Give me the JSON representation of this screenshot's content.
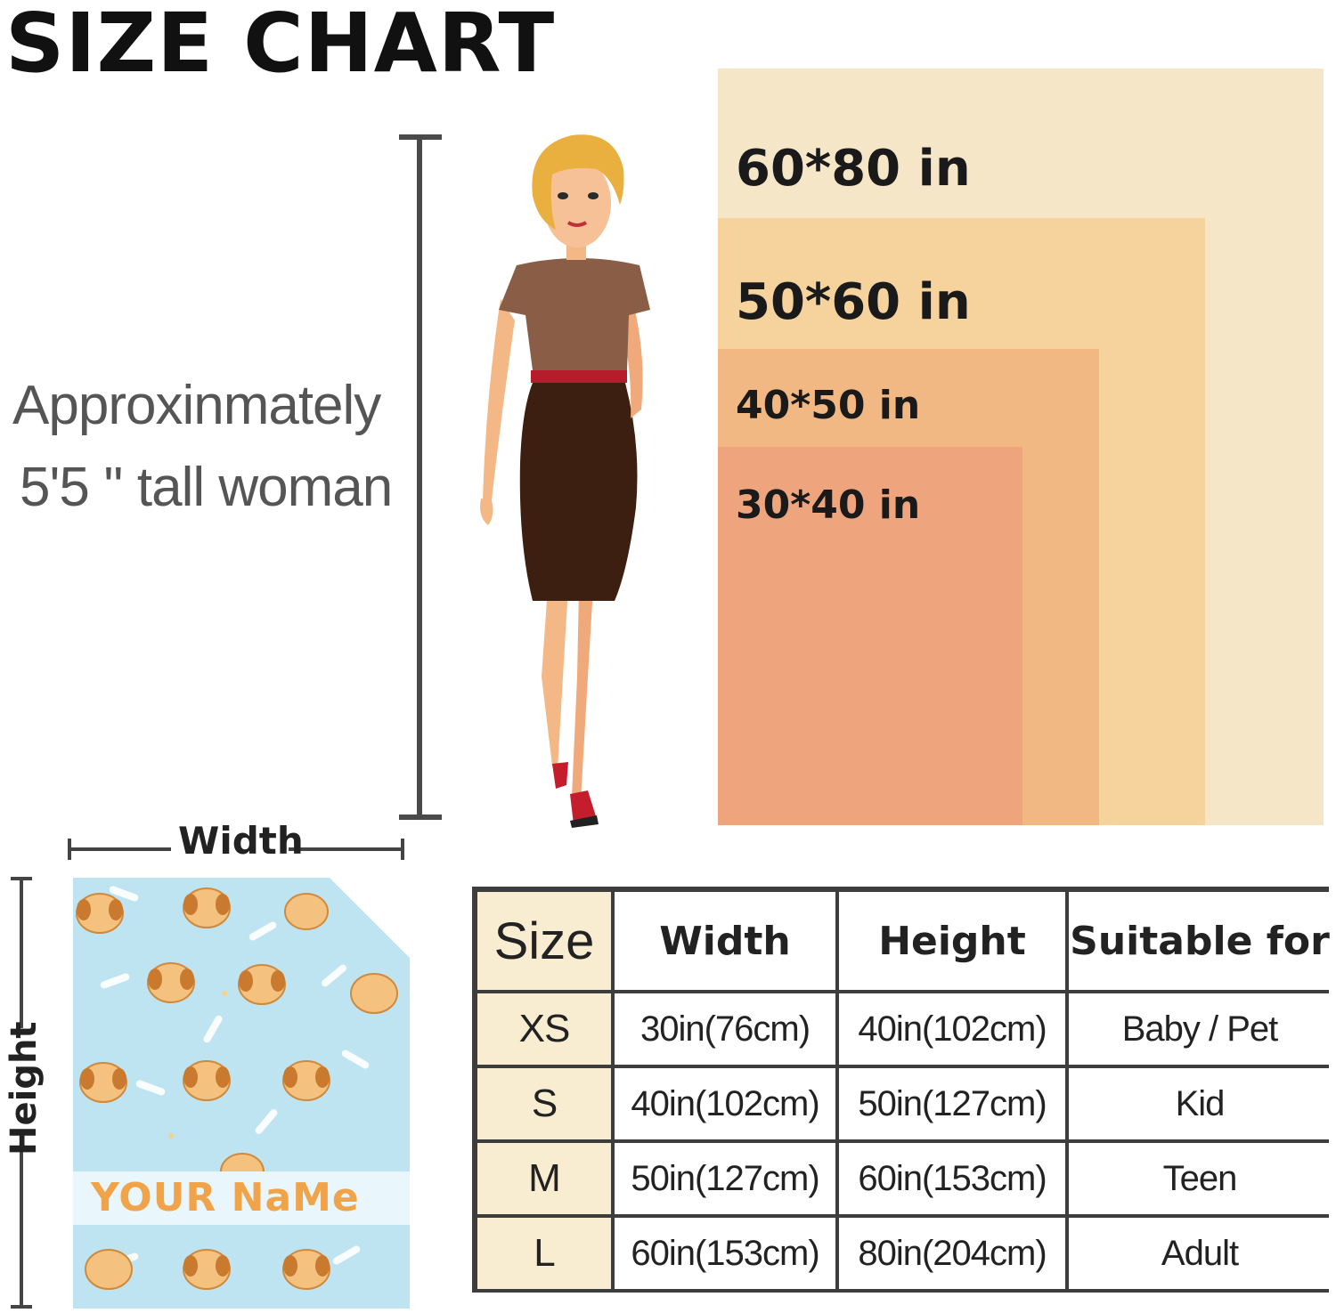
{
  "title": "SIZE CHART",
  "person_note": {
    "line1": "Approxinmately",
    "line2": "5'5 '' tall woman"
  },
  "size_boxes": [
    {
      "label": "60*80 in",
      "color": "#f4e6c6"
    },
    {
      "label": "50*60 in",
      "color": "#f6d39c"
    },
    {
      "label": "40*50 in",
      "color": "#f2b884"
    },
    {
      "label": "30*40 in",
      "color": "#eea57e"
    }
  ],
  "blanket": {
    "width_label": "Width",
    "height_label": "Height",
    "name_text": "YOUR NaMe",
    "background": "#bfe4f1"
  },
  "table": {
    "headers": [
      "Size",
      "Width",
      "Height",
      "Suitable for"
    ],
    "rows": [
      [
        "XS",
        "30in(76cm)",
        "40in(102cm)",
        "Baby / Pet"
      ],
      [
        "S",
        "40in(102cm)",
        "50in(127cm)",
        "Kid"
      ],
      [
        "M",
        "50in(127cm)",
        "60in(153cm)",
        "Teen"
      ],
      [
        "L",
        "60in(153cm)",
        "80in(204cm)",
        "Adult"
      ]
    ],
    "size_column_color": "#f8ecd1",
    "border_color": "#3d3d3d"
  }
}
